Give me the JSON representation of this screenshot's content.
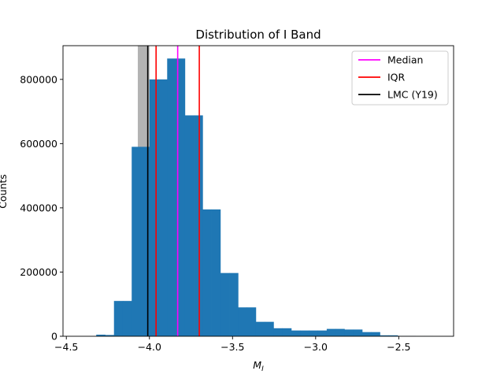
{
  "chart_data": {
    "type": "bar",
    "title": "Distribution of I Band",
    "xlabel_main": "M",
    "xlabel_sub": "I",
    "ylabel": "Counts",
    "xlim": [
      -4.52,
      -2.17
    ],
    "ylim": [
      0,
      905000
    ],
    "xticks": [
      -4.5,
      -4.0,
      -3.5,
      -3.0,
      -2.5
    ],
    "xtick_labels": [
      "−4.5",
      "−4.0",
      "−3.5",
      "−3.0",
      "−2.5"
    ],
    "yticks": [
      0,
      200000,
      400000,
      600000,
      800000
    ],
    "ytick_labels": [
      "0",
      "200000",
      "400000",
      "600000",
      "800000"
    ],
    "bars": [
      {
        "x0": -4.32,
        "x1": -4.2667,
        "count": 5000
      },
      {
        "x0": -4.2667,
        "x1": -4.2133,
        "count": 4000
      },
      {
        "x0": -4.2133,
        "x1": -4.16,
        "count": 110000
      },
      {
        "x0": -4.16,
        "x1": -4.1067,
        "count": 110000
      },
      {
        "x0": -4.1067,
        "x1": -4.0533,
        "count": 590000
      },
      {
        "x0": -4.0533,
        "x1": -4.0,
        "count": 590000
      },
      {
        "x0": -4.0,
        "x1": -3.9467,
        "count": 800000
      },
      {
        "x0": -3.9467,
        "x1": -3.8933,
        "count": 800000
      },
      {
        "x0": -3.8933,
        "x1": -3.84,
        "count": 865000
      },
      {
        "x0": -3.84,
        "x1": -3.7867,
        "count": 865000
      },
      {
        "x0": -3.7867,
        "x1": -3.7333,
        "count": 688000
      },
      {
        "x0": -3.7333,
        "x1": -3.68,
        "count": 688000
      },
      {
        "x0": -3.68,
        "x1": -3.6267,
        "count": 395000
      },
      {
        "x0": -3.6267,
        "x1": -3.5733,
        "count": 395000
      },
      {
        "x0": -3.5733,
        "x1": -3.52,
        "count": 197000
      },
      {
        "x0": -3.52,
        "x1": -3.4667,
        "count": 197000
      },
      {
        "x0": -3.4667,
        "x1": -3.4133,
        "count": 90000
      },
      {
        "x0": -3.4133,
        "x1": -3.36,
        "count": 90000
      },
      {
        "x0": -3.36,
        "x1": -3.3067,
        "count": 45000
      },
      {
        "x0": -3.3067,
        "x1": -3.2533,
        "count": 45000
      },
      {
        "x0": -3.2533,
        "x1": -3.2,
        "count": 25000
      },
      {
        "x0": -3.2,
        "x1": -3.1467,
        "count": 25000
      },
      {
        "x0": -3.1467,
        "x1": -3.0933,
        "count": 18000
      },
      {
        "x0": -3.0933,
        "x1": -3.04,
        "count": 18000
      },
      {
        "x0": -3.04,
        "x1": -2.9867,
        "count": 18000
      },
      {
        "x0": -2.9867,
        "x1": -2.9333,
        "count": 18000
      },
      {
        "x0": -2.9333,
        "x1": -2.88,
        "count": 23000
      },
      {
        "x0": -2.88,
        "x1": -2.8267,
        "count": 23000
      },
      {
        "x0": -2.8267,
        "x1": -2.7733,
        "count": 21000
      },
      {
        "x0": -2.7733,
        "x1": -2.72,
        "count": 21000
      },
      {
        "x0": -2.72,
        "x1": -2.6667,
        "count": 13000
      },
      {
        "x0": -2.6667,
        "x1": -2.6133,
        "count": 13000
      },
      {
        "x0": -2.6133,
        "x1": -2.56,
        "count": 3000
      },
      {
        "x0": -2.56,
        "x1": -2.5067,
        "count": 3000
      },
      {
        "x0": -2.5067,
        "x1": -2.4533,
        "count": 1000
      },
      {
        "x0": -2.4533,
        "x1": -2.4,
        "count": 1000
      },
      {
        "x0": -2.4,
        "x1": -2.3467,
        "count": 500
      },
      {
        "x0": -2.3467,
        "x1": -2.2933,
        "count": 500
      }
    ],
    "bar_color": "#1f77b4",
    "shaded_band": {
      "x0": -4.07,
      "x1": -4.0,
      "color": "#b3b3b3"
    },
    "vlines": [
      {
        "name": "Median",
        "x": -3.83,
        "color": "#ff00ff"
      },
      {
        "name": "IQR",
        "x": -3.96,
        "color": "#ff0000"
      },
      {
        "name": "IQR",
        "x": -3.7,
        "color": "#ff0000"
      },
      {
        "name": "LMC (Y19)",
        "x": -4.01,
        "color": "#000000"
      }
    ],
    "legend": {
      "placement": "top-right",
      "entries": [
        {
          "label": "Median",
          "color": "#ff00ff"
        },
        {
          "label": "IQR",
          "color": "#ff0000"
        },
        {
          "label": "LMC (Y19)",
          "color": "#000000"
        }
      ]
    },
    "grid": false
  }
}
